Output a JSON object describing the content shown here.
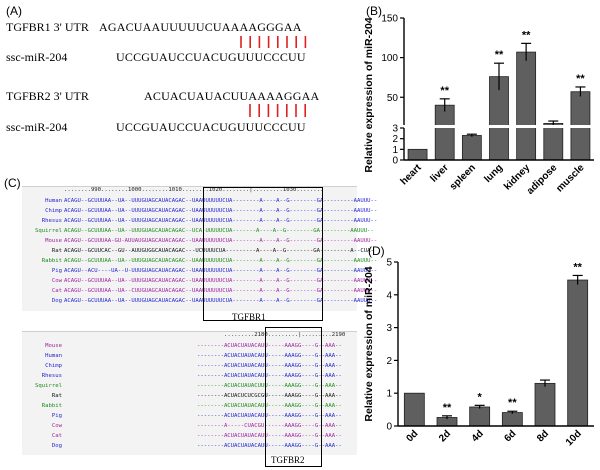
{
  "panel_a": {
    "label": "(A)",
    "rows": [
      {
        "name": "TGFBR1 3' UTR",
        "seq": "AGACUAAUUUUUCUAAAAGGGAA"
      },
      {
        "name": "ssc-miR-204",
        "seq": "UCCGUAUCCUACUGUUUCCCUU"
      },
      {
        "name": "TGFBR2 3' UTR",
        "seq": "ACUACUAUACUUAAAAGGAA"
      },
      {
        "name": "ssc-miR-204",
        "seq": "UCCGUAUCCUACUGUUUCCCUU"
      }
    ],
    "pair_color": "#e02020"
  },
  "panel_b": {
    "label": "(B)",
    "chart_data": {
      "type": "bar",
      "categories": [
        "heart",
        "liver",
        "spleen",
        "lung",
        "kidney",
        "adipose",
        "muscle"
      ],
      "values": [
        1.0,
        40,
        2.3,
        76,
        107,
        17,
        57
      ],
      "errors": [
        0,
        8,
        0.12,
        17,
        11,
        3,
        6
      ],
      "significance": [
        "",
        "**",
        "",
        "**",
        "**",
        "",
        "**"
      ],
      "ylabel": "Relative expression of miR-204",
      "yticks_top": [
        50,
        100,
        150
      ],
      "yticks_bottom": [
        0,
        1,
        2,
        3
      ],
      "axis_break": [
        3,
        15
      ],
      "bar_color": "#5f5f5f"
    }
  },
  "panel_c": {
    "label": "(C)",
    "top": {
      "ruler": "........990........1000........1010........1020........|.........1030........",
      "species": [
        {
          "name": "Human",
          "seq": "ACAGU--GCUUUAA--UA--UUUGUAGCAUACAGAC--UAAUUUUUUCUA--------A----A--G--------GA---------AAUUU--",
          "color": "#1f1fd0"
        },
        {
          "name": "Chimp",
          "seq": "ACAGU--GCUUUAA--UA--UUUGUAGCAUACAGAC--UAAUUUUUUCUA--------A----A--G--------GA---------AAUUU--",
          "color": "#1f1fd0"
        },
        {
          "name": "Rhesus",
          "seq": "ACAGU--GCUUUAA--UA--UUUGUAGCAUACAGAC--UAAUUUUUUCUA--------A----A--G--------GA---------AAUUU--",
          "color": "#1f1fd0"
        },
        {
          "name": "Squirrel",
          "seq": "ACAGU--GCUUUAA--UA--UUUGUAGCAUACAGAC--UCA-UUUUUCUA-------A----A--G--------GA---------AAUUU--",
          "color": "#1b8a1b"
        },
        {
          "name": "Mouse",
          "seq": "ACAGU--GCUUUAA-GU-AUUAUGUAGCAUACAGAC--UAAUUUUUUCUA--------A----A--G--------GA---------AAUUU--",
          "color": "#a020a0"
        },
        {
          "name": "Rat",
          "seq": "ACAGU--GCUUCAC--GU--AUUGUGGCAUACAGAC---UCUUUUCUA---------A----A--G--------GA---------A--CUA-",
          "color": "#111111"
        },
        {
          "name": "Rabbit",
          "seq": "ACAGU--GCUUUAA--UA--UUUGUAGCAUACAGAC--UAAUUUUUUCUA--------A----A--G--------GA---------AAUUU--",
          "color": "#1b8a1b"
        },
        {
          "name": "Pig",
          "seq": "ACAGU--ACU----UA--U-UUUGUAGCAUACAGAC--UAAUUUUUUCUA--------A----A--G--------GA---------AAUUU--",
          "color": "#1f1fd0"
        },
        {
          "name": "Cow",
          "seq": "ACAGU--GCUUUAA--UA--UUUGUAGCAUACAGAC--UAAUUUUUUCUA--------A----A--G--------GA---------AAUUU--",
          "color": "#a020a0"
        },
        {
          "name": "Cat",
          "seq": "ACAGU--GCUUUAA--UA--CUUGUAGCAUACAGAC--UAAUUUUUUCUA--------A----A--G--------GA---------AAUUU--",
          "color": "#a020a0"
        },
        {
          "name": "Dog",
          "seq": "ACAGU--GCUUUAA--UA--UUUGUAGCAUACAGAC--UAAUUUUUUCUA--------A----A--G--------GA---------AAUUU--",
          "color": "#1f1fd0"
        }
      ],
      "box_label": "TGFBR1"
    },
    "bottom": {
      "ruler": ".........2180.........|.........2190",
      "species": [
        {
          "name": "Mouse",
          "seq": "--------ACUACUAUACAUU-----AAAGG----G--AAA--",
          "color": "#a020a0"
        },
        {
          "name": "Human",
          "seq": "--------ACUACUAUACAUU-----AAAGG----G--AAA--",
          "color": "#1f1fd0"
        },
        {
          "name": "Chimp",
          "seq": "--------ACUACUAUACAUU-----AAAGG----G--AAA--",
          "color": "#1f1fd0"
        },
        {
          "name": "Rhesus",
          "seq": "--------ACUACUAUACAUU-----AAAGG----G--AAA--",
          "color": "#1f1fd0"
        },
        {
          "name": "Squirrel",
          "seq": "--------ACUACUAUACUUU-----AAAGG----G--AAA--",
          "color": "#1b8a1b"
        },
        {
          "name": "Rat",
          "seq": "--------ACUACUCUCGCGU-----AAAGG----G--AAA--",
          "color": "#111111"
        },
        {
          "name": "Rabbit",
          "seq": "--------ACUACUAUACAUU-----AAAGG----G--AAA--",
          "color": "#1b8a1b"
        },
        {
          "name": "Pig",
          "seq": "--------ACUACUAUACAUU-----AAAGG----G--AAA--",
          "color": "#1f1fd0"
        },
        {
          "name": "Cow",
          "seq": "--------A-----CUACGU------AAAGG----G--AAA--",
          "color": "#a020a0"
        },
        {
          "name": "Cat",
          "seq": "--------ACUACUAUACAUU-----AAAGG----G--AAA--",
          "color": "#a020a0"
        },
        {
          "name": "Dog",
          "seq": "--------ACUACUAUACAUU-----AAAGG----G--AAA--",
          "color": "#1f1fd0"
        }
      ],
      "box_label": "TGFBR2"
    }
  },
  "panel_d": {
    "label": "(D)",
    "chart_data": {
      "type": "bar",
      "categories": [
        "0d",
        "2d",
        "4d",
        "6d",
        "8d",
        "10d"
      ],
      "values": [
        1.0,
        0.26,
        0.58,
        0.41,
        1.3,
        4.45
      ],
      "errors": [
        0,
        0.05,
        0.05,
        0.04,
        0.1,
        0.14
      ],
      "significance": [
        "",
        "**",
        "*",
        "**",
        "",
        "**"
      ],
      "ylabel": "Relative expression of miR-204",
      "ylim": [
        0,
        5
      ],
      "yticks": [
        0,
        1,
        2,
        3,
        4,
        5
      ],
      "bar_color": "#5f5f5f"
    }
  }
}
